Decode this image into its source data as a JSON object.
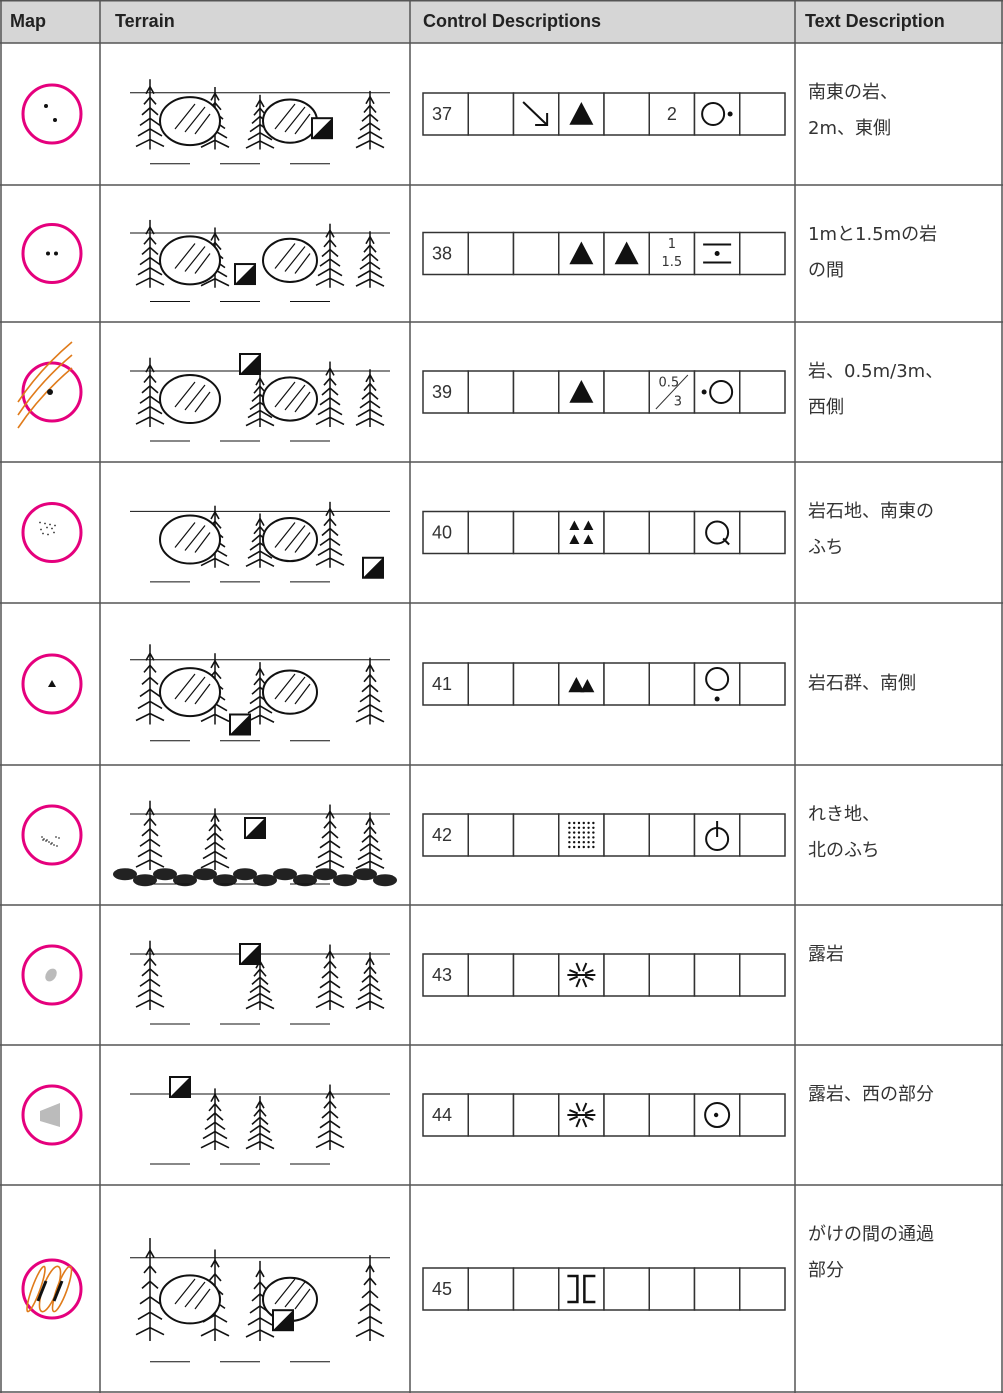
{
  "table": {
    "header": [
      "Map",
      "Terrain",
      "Control Descriptions",
      "Text Description"
    ],
    "rows": [
      {
        "number": "37",
        "column_f": "2",
        "text": [
          "南東の岩、",
          "2m、東側"
        ]
      },
      {
        "number": "38",
        "column_f": {
          "top": "1",
          "bottom": "1.5"
        },
        "text": [
          "1mと1.5mの岩",
          "の間"
        ]
      },
      {
        "number": "39",
        "column_f": {
          "top": "0.5",
          "bottom": "3"
        },
        "text": [
          "岩、0.5m/3m、",
          "西側"
        ]
      },
      {
        "number": "40",
        "text": [
          "岩石地、南東の",
          "ふち"
        ]
      },
      {
        "number": "41",
        "text": [
          "岩石群、南側"
        ]
      },
      {
        "number": "42",
        "text": [
          "れき地、",
          "北のふち"
        ]
      },
      {
        "number": "43",
        "text": [
          "露岩"
        ]
      },
      {
        "number": "44",
        "text": [
          "露岩、西の部分"
        ]
      },
      {
        "number": "45",
        "text": [
          "がけの間の通過",
          "部分"
        ]
      }
    ]
  }
}
